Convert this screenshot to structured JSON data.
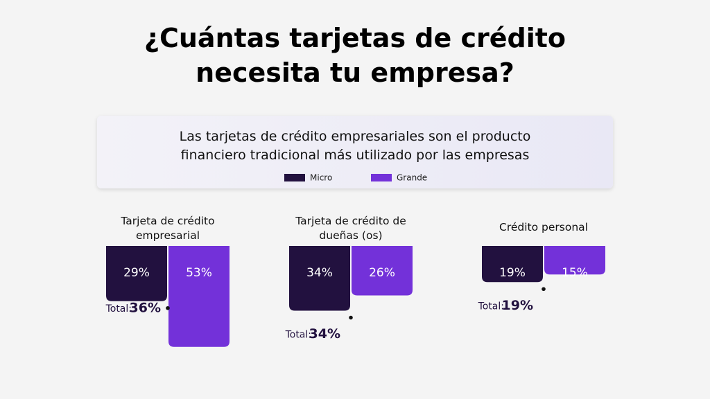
{
  "chart_data": {
    "type": "hanging-bar",
    "title": "¿Cuántas tarjetas de crédito necesita tu empresa?",
    "subtitle": "Las tarjetas de crédito empresariales son el producto financiero tradicional más utilizado por las empresas",
    "categories": [
      "Tarjeta de crédito empresarial",
      "Tarjeta de crédito de dueñas (os)",
      "Crédito personal"
    ],
    "series": [
      {
        "name": "Micro",
        "color": "#22113f",
        "values": [
          29,
          34,
          19
        ],
        "value_labels": [
          "29%",
          "34%",
          "19%"
        ]
      },
      {
        "name": "Grande",
        "color": "#7331d9",
        "values": [
          53,
          26,
          15
        ],
        "value_labels": [
          "53%",
          "26%",
          "15%"
        ]
      }
    ],
    "totals": {
      "label": "Total:",
      "values": [
        36,
        34,
        19
      ],
      "value_labels": [
        "36%",
        "34%",
        "19%"
      ]
    }
  }
}
